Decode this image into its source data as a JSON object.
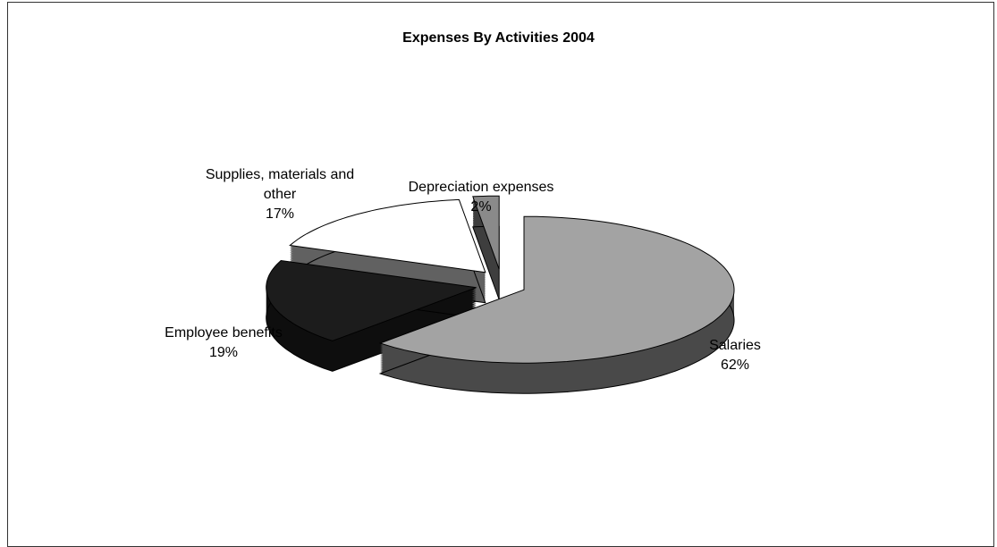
{
  "chart_data": {
    "type": "pie",
    "title": "Expenses By Activities 2004",
    "categories": [
      "Salaries",
      "Employee benefits",
      "Supplies, materials and other",
      "Depreciation expenses"
    ],
    "values": [
      62,
      19,
      17,
      2
    ],
    "value_labels": [
      "62%",
      "19%",
      "17%",
      "2%"
    ],
    "colors": [
      "#a3a3a3",
      "#1c1c1c",
      "#ffffff",
      "#8a8a8a"
    ]
  }
}
